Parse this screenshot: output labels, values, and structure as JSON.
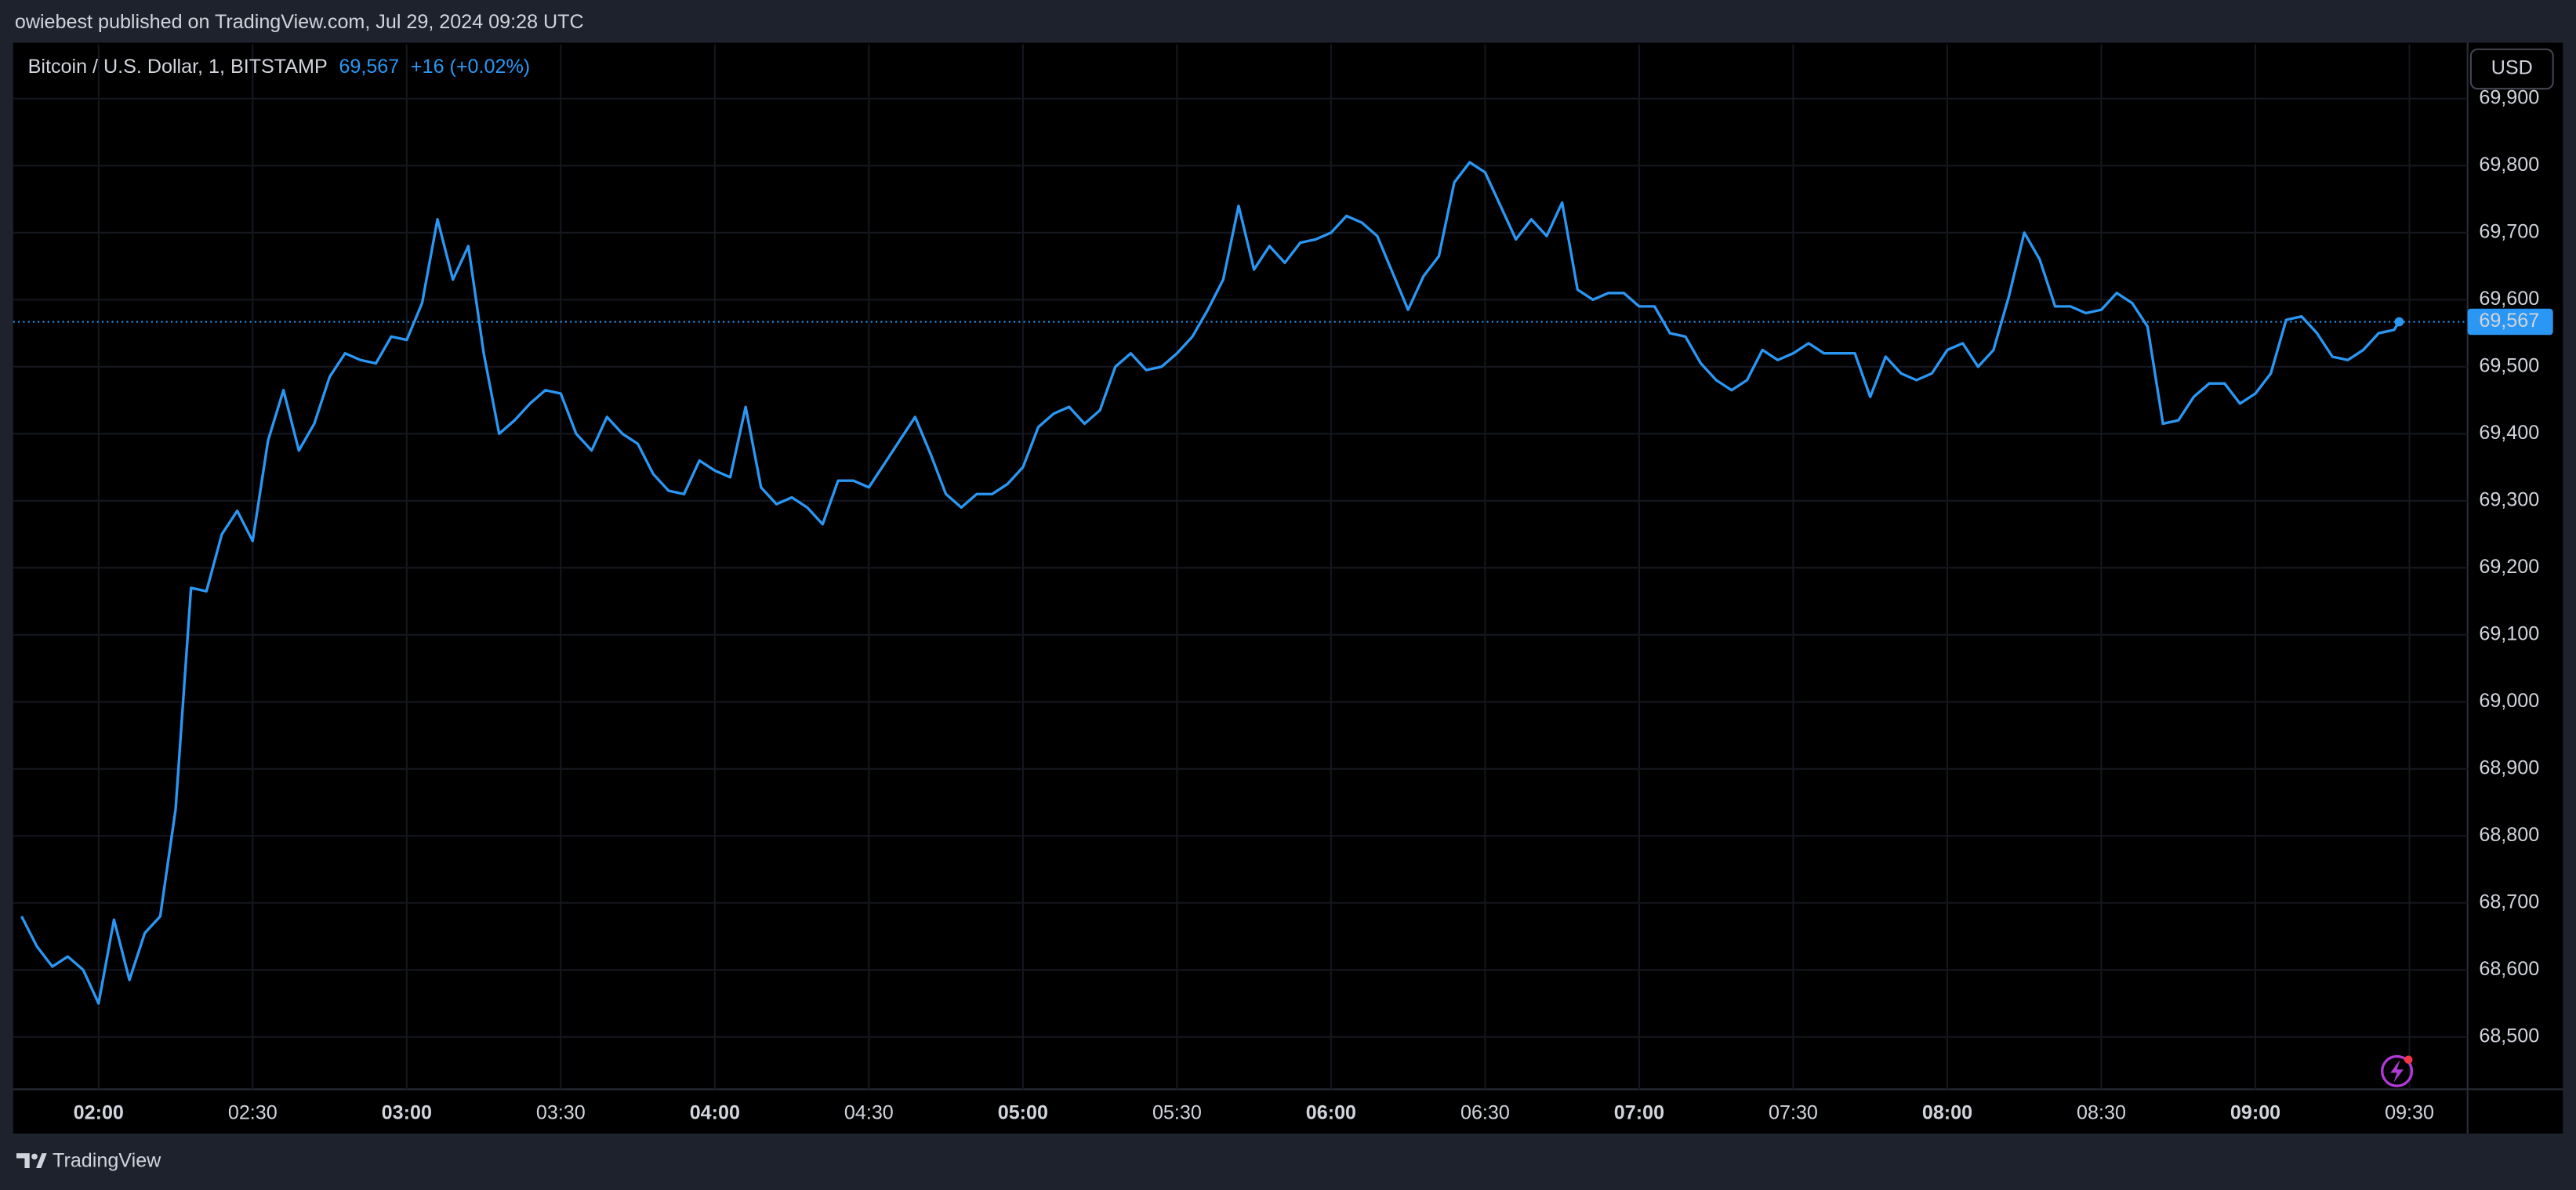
{
  "header": "owiebest published on TradingView.com, Jul 29, 2024 09:28 UTC",
  "footer": "TradingView",
  "currency": "USD",
  "chart_data": {
    "type": "line",
    "legend_price": {
      "value": 69567,
      "label": "69,567"
    },
    "legend_change": "+16 (+0.02%)",
    "last_price": {
      "value": 69567,
      "label": "69,567"
    },
    "grid": true,
    "xlim": [
      "01:44",
      "09:41"
    ],
    "xticks": [
      "02:00",
      "02:30",
      "03:00",
      "03:30",
      "04:00",
      "04:30",
      "05:00",
      "05:30",
      "06:00",
      "06:30",
      "07:00",
      "07:30",
      "08:00",
      "08:30",
      "09:00",
      "09:30"
    ],
    "ylim": [
      68422,
      69981
    ],
    "yticks": [
      {
        "value": 68500,
        "label": "68,500"
      },
      {
        "value": 68600,
        "label": "68,600"
      },
      {
        "value": 68700,
        "label": "68,700"
      },
      {
        "value": 68800,
        "label": "68,800"
      },
      {
        "value": 68900,
        "label": "68,900"
      },
      {
        "value": 69000,
        "label": "69,000"
      },
      {
        "value": 69100,
        "label": "69,100"
      },
      {
        "value": 69200,
        "label": "69,200"
      },
      {
        "value": 69300,
        "label": "69,300"
      },
      {
        "value": 69400,
        "label": "69,400"
      },
      {
        "value": 69500,
        "label": "69,500"
      },
      {
        "value": 69600,
        "label": "69,600"
      },
      {
        "value": 69700,
        "label": "69,700"
      },
      {
        "value": 69800,
        "label": "69,800"
      },
      {
        "value": 69900,
        "label": "69,900"
      }
    ],
    "x": [
      "01:45",
      "01:48",
      "01:51",
      "01:54",
      "01:57",
      "02:00",
      "02:03",
      "02:06",
      "02:09",
      "02:12",
      "02:15",
      "02:18",
      "02:21",
      "02:24",
      "02:27",
      "02:30",
      "02:33",
      "02:36",
      "02:39",
      "02:42",
      "02:45",
      "02:48",
      "02:51",
      "02:54",
      "02:57",
      "03:00",
      "03:03",
      "03:06",
      "03:09",
      "03:12",
      "03:15",
      "03:18",
      "03:21",
      "03:24",
      "03:27",
      "03:30",
      "03:33",
      "03:36",
      "03:39",
      "03:42",
      "03:45",
      "03:48",
      "03:51",
      "03:54",
      "03:57",
      "04:00",
      "04:03",
      "04:06",
      "04:09",
      "04:12",
      "04:15",
      "04:18",
      "04:21",
      "04:24",
      "04:27",
      "04:30",
      "04:33",
      "04:36",
      "04:39",
      "04:42",
      "04:45",
      "04:48",
      "04:51",
      "04:54",
      "04:57",
      "05:00",
      "05:03",
      "05:06",
      "05:09",
      "05:12",
      "05:15",
      "05:18",
      "05:21",
      "05:24",
      "05:27",
      "05:30",
      "05:33",
      "05:36",
      "05:39",
      "05:42",
      "05:45",
      "05:48",
      "05:51",
      "05:54",
      "05:57",
      "06:00",
      "06:03",
      "06:06",
      "06:09",
      "06:12",
      "06:15",
      "06:18",
      "06:21",
      "06:24",
      "06:27",
      "06:30",
      "06:33",
      "06:36",
      "06:39",
      "06:42",
      "06:45",
      "06:48",
      "06:51",
      "06:54",
      "06:57",
      "07:00",
      "07:03",
      "07:06",
      "07:09",
      "07:12",
      "07:15",
      "07:18",
      "07:21",
      "07:24",
      "07:27",
      "07:30",
      "07:33",
      "07:36",
      "07:39",
      "07:42",
      "07:45",
      "07:48",
      "07:51",
      "07:54",
      "07:57",
      "08:00",
      "08:03",
      "08:06",
      "08:09",
      "08:12",
      "08:15",
      "08:18",
      "08:21",
      "08:24",
      "08:27",
      "08:30",
      "08:33",
      "08:36",
      "08:39",
      "08:42",
      "08:45",
      "08:48",
      "08:51",
      "08:54",
      "08:57",
      "09:00",
      "09:03",
      "09:06",
      "09:09",
      "09:12",
      "09:15",
      "09:18",
      "09:21",
      "09:24",
      "09:27",
      "09:28"
    ],
    "series": [
      {
        "name": "Bitcoin / U.S. Dollar, 1, BITSTAMP",
        "color": "#2a97f4",
        "values": [
          68680,
          68635,
          68605,
          68620,
          68600,
          68550,
          68675,
          68585,
          68655,
          68680,
          68840,
          69170,
          69165,
          69250,
          69285,
          69240,
          69390,
          69465,
          69375,
          69415,
          69485,
          69520,
          69510,
          69505,
          69545,
          69540,
          69595,
          69720,
          69630,
          69680,
          69520,
          69400,
          69420,
          69445,
          69465,
          69460,
          69400,
          69375,
          69425,
          69400,
          69385,
          69340,
          69315,
          69310,
          69360,
          69345,
          69335,
          69440,
          69320,
          69295,
          69305,
          69290,
          69265,
          69330,
          69330,
          69320,
          69355,
          69390,
          69425,
          69370,
          69310,
          69290,
          69310,
          69310,
          69325,
          69350,
          69410,
          69430,
          69440,
          69415,
          69435,
          69500,
          69520,
          69495,
          69500,
          69520,
          69545,
          69585,
          69630,
          69740,
          69645,
          69680,
          69655,
          69685,
          69690,
          69700,
          69725,
          69715,
          69695,
          69640,
          69585,
          69635,
          69665,
          69775,
          69805,
          69790,
          69740,
          69690,
          69720,
          69695,
          69745,
          69615,
          69600,
          69610,
          69610,
          69590,
          69590,
          69550,
          69545,
          69505,
          69480,
          69465,
          69480,
          69525,
          69510,
          69520,
          69535,
          69520,
          69520,
          69520,
          69455,
          69515,
          69490,
          69480,
          69490,
          69525,
          69535,
          69500,
          69525,
          69605,
          69700,
          69660,
          69590,
          69590,
          69580,
          69585,
          69610,
          69595,
          69560,
          69415,
          69420,
          69455,
          69475,
          69475,
          69445,
          69460,
          69490,
          69570,
          69575,
          69550,
          69515,
          69510,
          69525,
          69550,
          69555,
          69567
        ]
      }
    ]
  }
}
